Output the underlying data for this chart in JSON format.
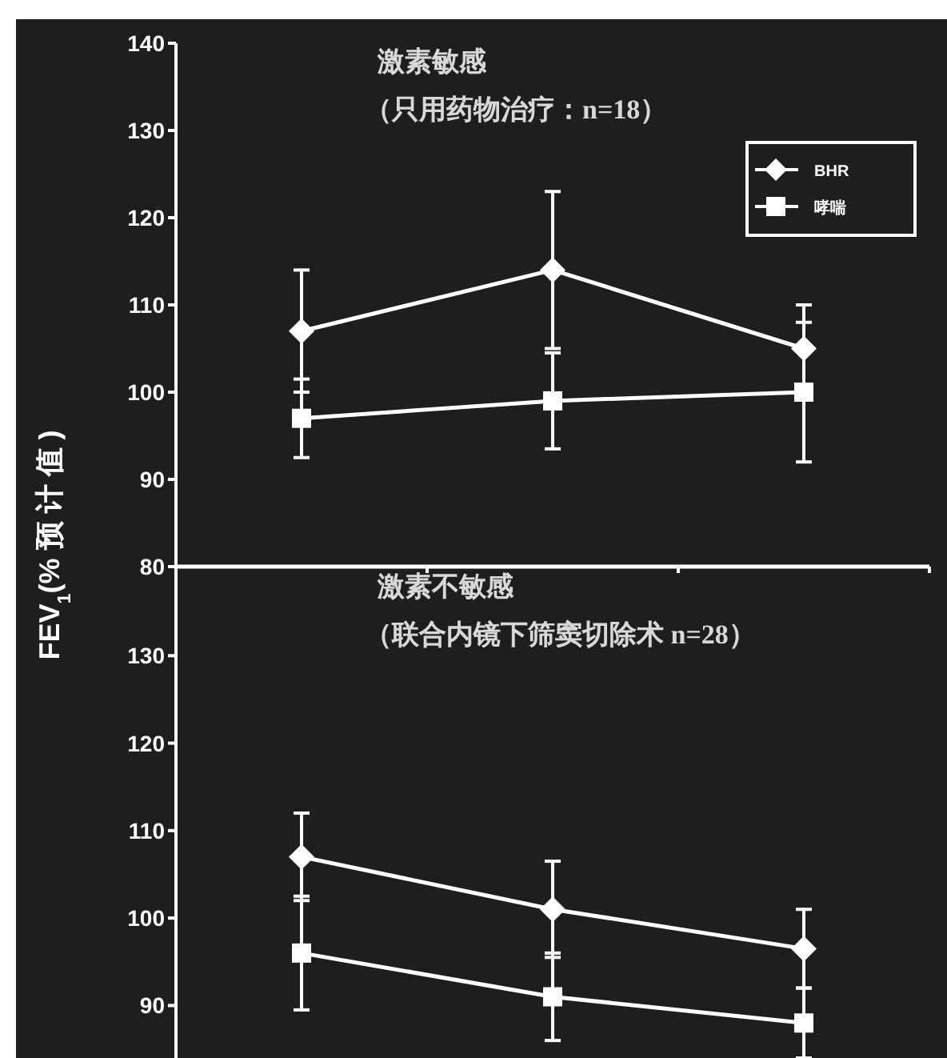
{
  "chart_data": [
    {
      "type": "line",
      "title": "激素敏感",
      "subtitle": "（只用药物治疗：n=18）",
      "ylabel": "FEV$_{1}$(% 预 计 值 )",
      "categories": [
        null,
        null,
        null
      ],
      "ylim": [
        80,
        140
      ],
      "yticks": [
        80,
        90,
        100,
        110,
        120,
        130,
        140
      ],
      "legend": "top right",
      "tick_labels": "y",
      "series": [
        {
          "name": "BHR",
          "color": "#ffffff",
          "marker": "diamond",
          "values": [
            107,
            114,
            105
          ],
          "errors": [
            7,
            9,
            5
          ]
        },
        {
          "name": "哮喘",
          "color": "#ffffff",
          "marker": "square",
          "values": [
            97,
            99,
            100
          ],
          "errors": [
            4.5,
            5.5,
            8
          ]
        }
      ]
    },
    {
      "type": "line",
      "title": "激素不敏感",
      "subtitle": "（联合内镜下筛窦切除术 n=28）",
      "categories": [
        null,
        null,
        null
      ],
      "ylim": [
        84,
        140
      ],
      "yticks": [
        90,
        100,
        110,
        120,
        130
      ],
      "tick_labels": "y",
      "series": [
        {
          "color": "#ffffff",
          "marker": "diamond",
          "values": [
            107,
            101,
            96.5
          ],
          "errors": [
            5,
            5.5,
            4.5
          ]
        },
        {
          "color": "#ffffff",
          "marker": "square",
          "values": [
            96,
            91,
            88
          ],
          "errors": [
            6.5,
            5,
            4
          ]
        }
      ]
    }
  ]
}
